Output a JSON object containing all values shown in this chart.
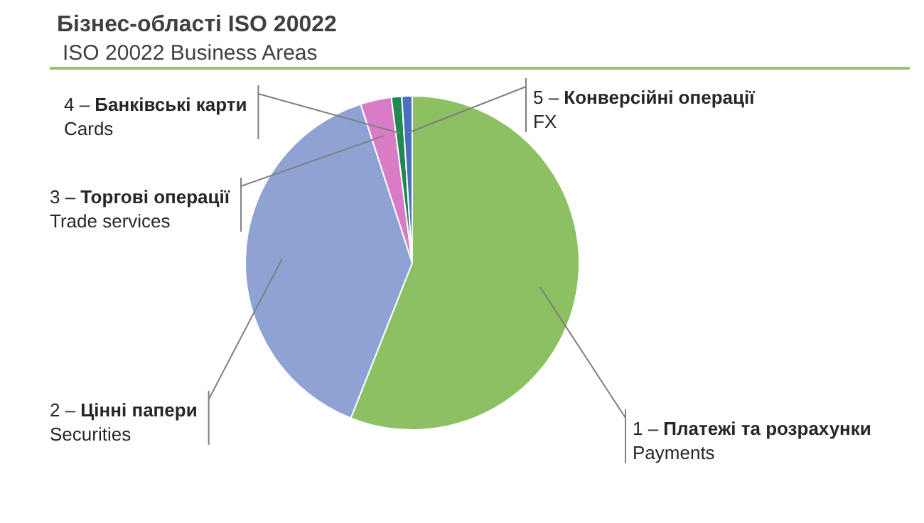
{
  "chart_data": {
    "type": "pie",
    "title": "Бізнес-області ISO 20022",
    "subtitle": "ISO 20022 Business Areas",
    "categories": [
      "1 – Платежі та розрахунки\nPayments",
      "2 – Цінні папери\nSecurities",
      "3 – Торгові операції\nTrade services",
      "4 – Банківські карти\nCards",
      "5 – Конверсійні операції\nFX"
    ],
    "values": [
      56,
      39,
      3,
      1,
      1
    ],
    "colors": [
      "#8cc063",
      "#8ea3d4",
      "#d87cc5",
      "#1f8a4f",
      "#4a6fc0"
    ]
  }
}
